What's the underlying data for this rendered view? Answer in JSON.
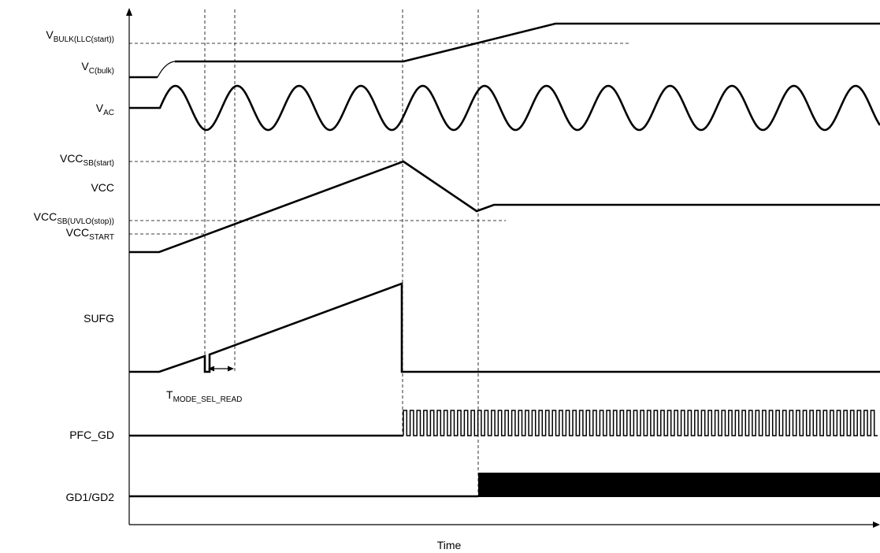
{
  "axis": {
    "x_label": "Time"
  },
  "labels": {
    "vbulk": {
      "main": "V",
      "sub": "BULK(LLC(start))"
    },
    "vcbulk": {
      "main": "V",
      "sub": "C(bulk)"
    },
    "vac": {
      "main": "V",
      "sub": "AC"
    },
    "vccsb_start": {
      "main": "VCC",
      "sub": "SB(start)"
    },
    "vcc": {
      "main": "VCC"
    },
    "vccsb_uvlo": {
      "main": "VCC",
      "sub": "SB(UVLO(stop))"
    },
    "vcc_start": {
      "main": "VCC",
      "sub": "START"
    },
    "sufg": {
      "main": "SUFG"
    },
    "tmode": {
      "main": "T",
      "sub": "MODE_SEL_READ"
    },
    "pfc_gd": {
      "main": "PFC_GD"
    },
    "gd12": {
      "main": "GD1/GD2"
    }
  },
  "colors": {
    "line": "#000000",
    "background": "#ffffff"
  }
}
